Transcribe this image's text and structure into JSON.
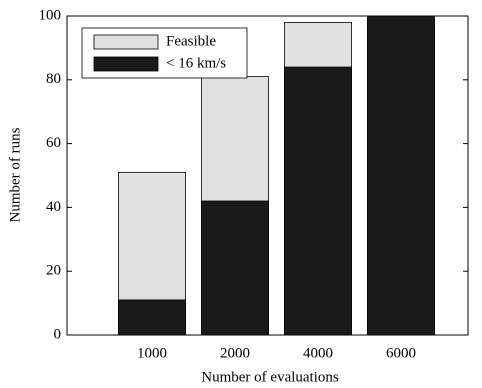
{
  "chart_data": {
    "type": "bar",
    "x_label": "Number of evaluations",
    "y_label": "Number of runs",
    "categories": [
      "1000",
      "2000",
      "4000",
      "6000"
    ],
    "series": [
      {
        "name": "Feasible",
        "color": "#e0e0e0",
        "values": [
          51,
          81,
          98,
          100
        ]
      },
      {
        "name": "< 16 km/s",
        "color": "#1a1a1a",
        "values": [
          11,
          42,
          84,
          100
        ]
      }
    ],
    "ylim": [
      0,
      100
    ],
    "yticks": [
      0,
      20,
      40,
      60,
      80,
      100
    ],
    "legend": "upper left"
  }
}
